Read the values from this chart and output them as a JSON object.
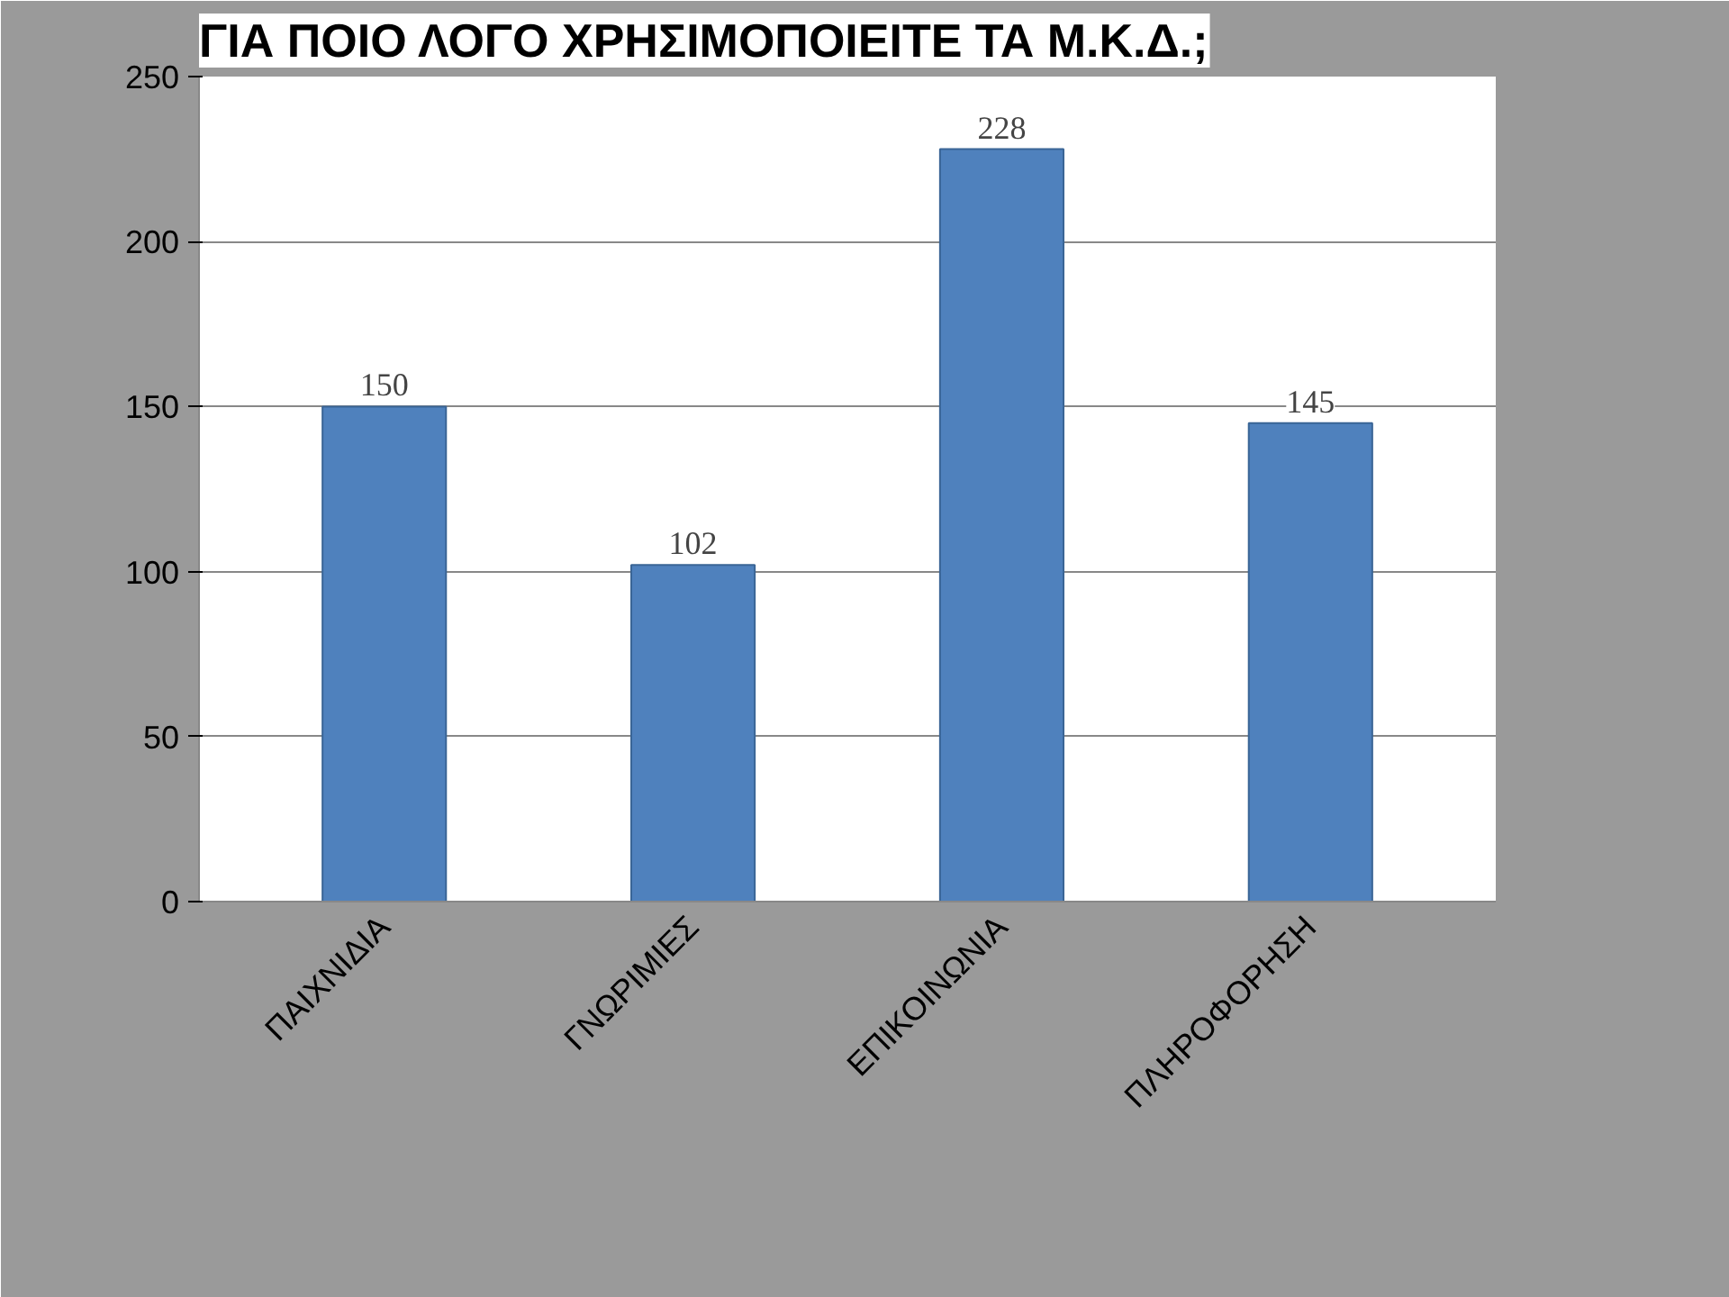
{
  "chart_data": {
    "type": "bar",
    "title": "ΓΙΑ ΠΟΙΟ ΛΟΓΟ ΧΡΗΣΙΜΟΠΟΙΕΙΤΕ ΤΑ Μ.Κ.Δ.;",
    "categories": [
      "ΠΑΙΧΝΙΔΙΑ",
      "ΓΝΩΡΙΜΙΕΣ",
      "ΕΠΙΚΟΙΝΩΝΙΑ",
      "ΠΛΗΡΟΦΟΡΗΣΗ"
    ],
    "values": [
      150,
      102,
      228,
      145
    ],
    "color": "#4f81bd",
    "ylim": [
      0,
      250
    ],
    "yticks": [
      0,
      50,
      100,
      150,
      200,
      250
    ],
    "grid": "y",
    "data_labels": true
  }
}
